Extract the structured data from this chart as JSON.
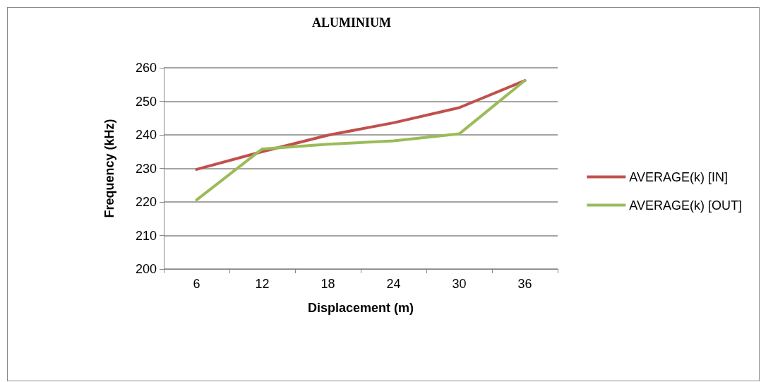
{
  "chart_data": {
    "type": "line",
    "title": "ALUMINIUM",
    "xlabel": "Displacement (m)",
    "ylabel": "Frequency (kHz)",
    "categories": [
      "6",
      "12",
      "18",
      "24",
      "30",
      "36"
    ],
    "series": [
      {
        "name": "AVERAGE(k) [IN]",
        "color": "#c0504d",
        "values": [
          229.7,
          235.0,
          239.9,
          243.6,
          248.1,
          256.2
        ]
      },
      {
        "name": "AVERAGE(k) [OUT]",
        "color": "#9bbb59",
        "values": [
          220.6,
          235.8,
          237.2,
          238.2,
          240.3,
          256.2
        ]
      }
    ],
    "ylim": [
      200,
      260
    ],
    "yticks": [
      200,
      210,
      220,
      230,
      240,
      250,
      260
    ],
    "grid": "y",
    "legend": "right",
    "marker": "none",
    "line_style": "solid"
  }
}
